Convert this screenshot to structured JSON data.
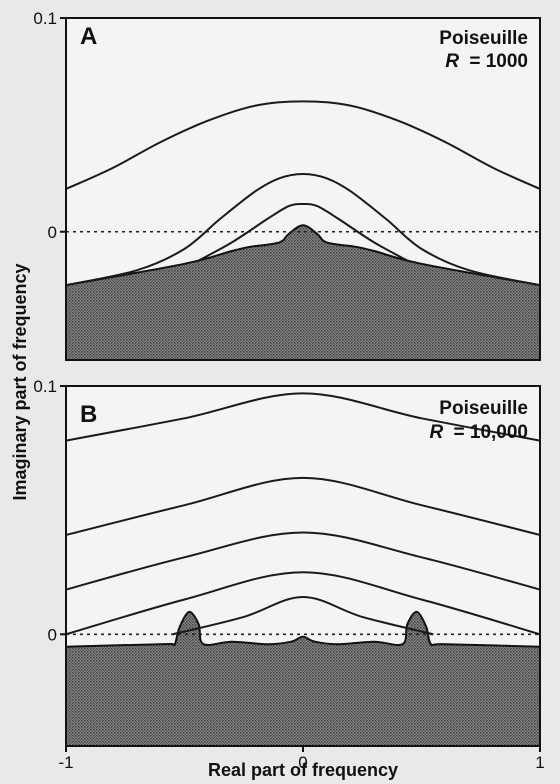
{
  "chart_data": [
    {
      "panel": "A",
      "type": "line",
      "flow": "Poiseuille",
      "r_label": "R = 1000",
      "r_prefix": "R",
      "r_value": "= 1000",
      "xlim": [
        -1,
        1
      ],
      "ylim": [
        -0.06,
        0.1
      ],
      "yticks": [
        {
          "value": 0.1,
          "label": "0.1"
        },
        {
          "value": 0,
          "label": "0"
        }
      ],
      "dotted_line_y": 0,
      "spectrum_boundary": [
        [
          -1,
          -0.025
        ],
        [
          -0.5,
          -0.015
        ],
        [
          -0.3,
          -0.009
        ],
        [
          -0.22,
          -0.007
        ],
        [
          -0.1,
          -0.005
        ],
        [
          -0.06,
          -0.001
        ],
        [
          0,
          0.003
        ],
        [
          0.06,
          -0.001
        ],
        [
          0.1,
          -0.005
        ],
        [
          0.22,
          -0.007
        ],
        [
          0.3,
          -0.009
        ],
        [
          0.5,
          -0.015
        ],
        [
          1,
          -0.025
        ]
      ],
      "series": [
        {
          "values": [
            [
              -1,
              0.02
            ],
            [
              -0.8,
              0.03
            ],
            [
              -0.6,
              0.042
            ],
            [
              -0.4,
              0.052
            ],
            [
              -0.2,
              0.059
            ],
            [
              0,
              0.061
            ],
            [
              0.2,
              0.059
            ],
            [
              0.4,
              0.052
            ],
            [
              0.6,
              0.042
            ],
            [
              0.8,
              0.03
            ],
            [
              1,
              0.02
            ]
          ]
        },
        {
          "values": [
            [
              -1,
              -0.025
            ],
            [
              -0.7,
              -0.018
            ],
            [
              -0.5,
              -0.008
            ],
            [
              -0.35,
              0.006
            ],
            [
              -0.2,
              0.019
            ],
            [
              -0.1,
              0.025
            ],
            [
              0,
              0.027
            ],
            [
              0.1,
              0.025
            ],
            [
              0.2,
              0.019
            ],
            [
              0.35,
              0.006
            ],
            [
              0.5,
              -0.008
            ],
            [
              0.7,
              -0.018
            ],
            [
              1,
              -0.025
            ]
          ]
        },
        {
          "values": [
            [
              -0.45,
              -0.014
            ],
            [
              -0.3,
              -0.005
            ],
            [
              -0.15,
              0.006
            ],
            [
              -0.06,
              0.012
            ],
            [
              0,
              0.013
            ],
            [
              0.06,
              0.012
            ],
            [
              0.15,
              0.006
            ],
            [
              0.3,
              -0.005
            ],
            [
              0.45,
              -0.014
            ]
          ]
        }
      ]
    },
    {
      "panel": "B",
      "type": "line",
      "flow": "Poiseuille",
      "r_label": "R = 10,000",
      "r_prefix": "R",
      "r_value": "= 10,000",
      "xlim": [
        -1,
        1
      ],
      "ylim": [
        -0.045,
        0.1
      ],
      "yticks": [
        {
          "value": 0.1,
          "label": "0.1"
        },
        {
          "value": 0,
          "label": "0"
        }
      ],
      "xticks": [
        {
          "value": -1,
          "label": "-1"
        },
        {
          "value": 0,
          "label": "0"
        },
        {
          "value": 1,
          "label": "1"
        }
      ],
      "dotted_line_y": 0,
      "spectrum_boundary": [
        [
          -1,
          -0.005
        ],
        [
          -0.6,
          -0.004
        ],
        [
          -0.55,
          -0.004
        ],
        [
          -0.54,
          -0.004
        ],
        [
          -0.52,
          0.003
        ],
        [
          -0.48,
          0.009
        ],
        [
          -0.44,
          0.004
        ],
        [
          -0.42,
          -0.004
        ],
        [
          -0.3,
          -0.003
        ],
        [
          -0.15,
          -0.004
        ],
        [
          -0.05,
          -0.003
        ],
        [
          0,
          -0.001
        ],
        [
          0.05,
          -0.003
        ],
        [
          0.15,
          -0.004
        ],
        [
          0.3,
          -0.003
        ],
        [
          0.42,
          -0.004
        ],
        [
          0.44,
          0.004
        ],
        [
          0.48,
          0.009
        ],
        [
          0.52,
          0.003
        ],
        [
          0.54,
          -0.004
        ],
        [
          0.6,
          -0.004
        ],
        [
          1,
          -0.005
        ]
      ],
      "series": [
        {
          "values": [
            [
              -1,
              0.078
            ],
            [
              -0.5,
              0.087
            ],
            [
              0,
              0.097
            ],
            [
              0.5,
              0.087
            ],
            [
              1,
              0.078
            ]
          ]
        },
        {
          "values": [
            [
              -1,
              0.04
            ],
            [
              -0.5,
              0.052
            ],
            [
              0,
              0.063
            ],
            [
              0.5,
              0.052
            ],
            [
              1,
              0.04
            ]
          ]
        },
        {
          "values": [
            [
              -1,
              0.018
            ],
            [
              -0.5,
              0.031
            ],
            [
              0,
              0.041
            ],
            [
              0.5,
              0.031
            ],
            [
              1,
              0.018
            ]
          ]
        },
        {
          "values": [
            [
              -1,
              0.0
            ],
            [
              -0.5,
              0.014
            ],
            [
              0,
              0.025
            ],
            [
              0.5,
              0.014
            ],
            [
              1,
              0.0
            ]
          ]
        },
        {
          "values": [
            [
              -0.55,
              0.0
            ],
            [
              -0.25,
              0.007
            ],
            [
              0,
              0.015
            ],
            [
              0.25,
              0.007
            ],
            [
              0.55,
              0.0
            ]
          ]
        }
      ]
    }
  ],
  "axes": {
    "ylabel": "Imaginary part of frequency",
    "xlabel": "Real part of frequency"
  },
  "colors": {
    "curve": "#1a1a1a",
    "fill": "#6e6e6e",
    "background": "#e9e9e9",
    "panel_background": "#f4f4f4"
  }
}
